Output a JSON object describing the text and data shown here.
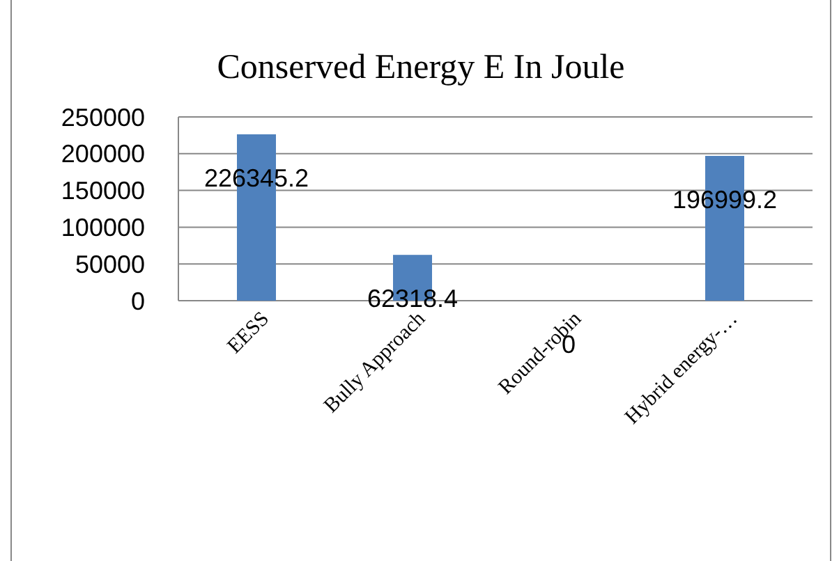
{
  "chart_data": {
    "type": "bar",
    "title": "Conserved Energy E In Joule",
    "categories": [
      "EESS",
      "Bully Approach",
      "Round-robin",
      "Hybrid energy-…"
    ],
    "values": [
      226345.2,
      62318.4,
      0,
      196999.2
    ],
    "color": "#4f81bd",
    "ylim": [
      0,
      250000
    ],
    "yticks": [
      0,
      50000,
      100000,
      150000,
      200000,
      250000
    ],
    "grid": "y",
    "data_labels": true
  }
}
